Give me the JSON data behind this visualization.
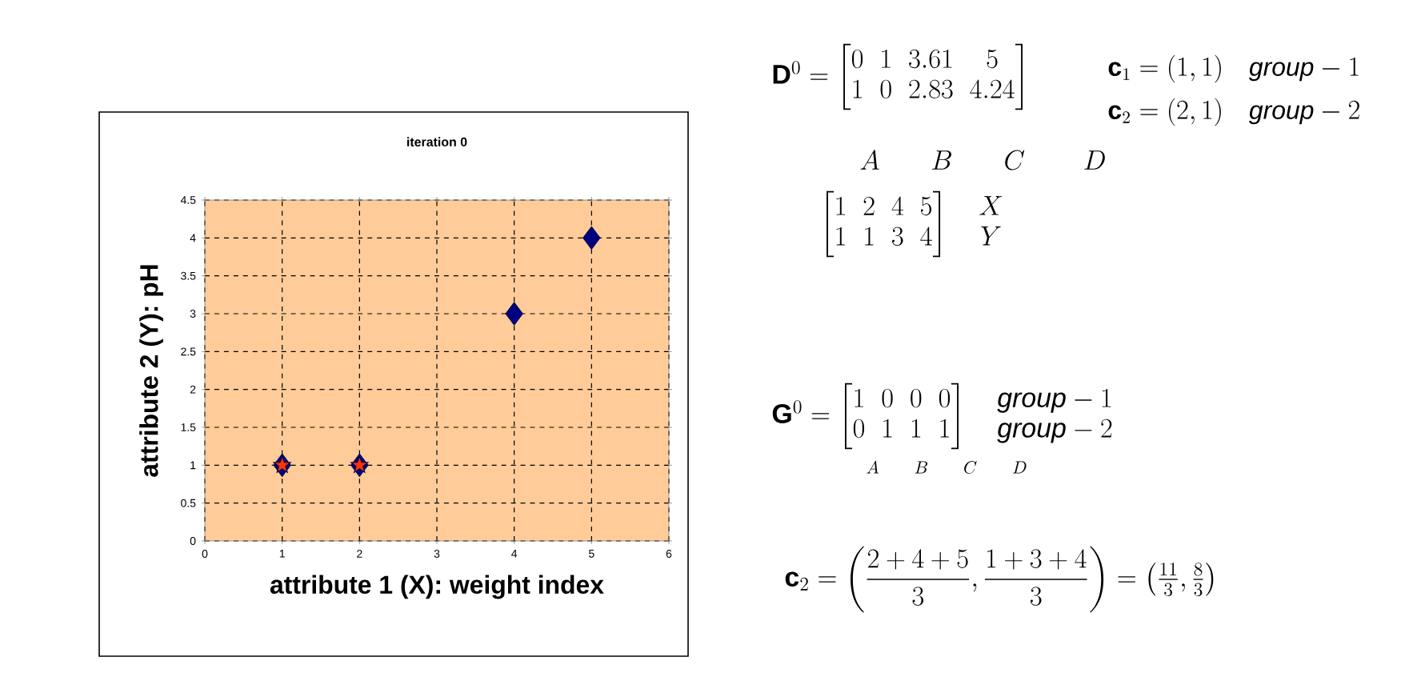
{
  "chart_data": {
    "type": "scatter",
    "title": "iteration 0",
    "xlabel": "attribute 1 (X): weight index",
    "ylabel": "attribute 2 (Y): pH",
    "xlim": [
      0,
      6
    ],
    "xticks": [
      0,
      1,
      2,
      3,
      4,
      5,
      6
    ],
    "ylim": [
      0,
      4.5
    ],
    "yticks": [
      0,
      0.5,
      1,
      1.5,
      2,
      2.5,
      3,
      3.5,
      4,
      4.5
    ],
    "grid": true,
    "series": [
      {
        "color": "#000080",
        "marker": "diamond",
        "x": [
          1,
          2,
          4,
          5
        ],
        "values": [
          1,
          1,
          3,
          4
        ]
      },
      {
        "color": "#ff3300",
        "marker": "star",
        "x": [
          1,
          2
        ],
        "values": [
          1,
          1
        ]
      }
    ],
    "annotations": [
      "\\mathbf{D}^0=\\begin{bmatrix}0&1&3.61&5\\\\1&0&2.83&4.24\\end{bmatrix}",
      "\\mathbf{c}_1=(1,1)\\quad \\mathit{group}-1",
      "\\mathbf{c}_2=(2,1)\\quad \\mathit{group}-2",
      "A\\qquad B\\qquad C\\qquad\\ D",
      "\\begin{bmatrix}1&2&4&5\\\\1&1&3&4\\end{bmatrix}\\quad\\begin{matrix}X\\\\Y\\end{matrix}",
      "\\mathbf{G}^0=\\begin{bmatrix}1&0&0&0\\\\0&1&1&1\\end{bmatrix}\\quad\\begin{matrix}\\mathit{group}-1\\\\\\mathit{group}-2\\end{matrix}",
      "A\\qquad B\\qquad C\\qquad D",
      "\\mathbf{c}_2=\\left(\\frac{2+4+5}{3},\\frac{1+3+4}{3}\\right)=\\left(\\tfrac{11}{3},\\tfrac{8}{3}\\right)"
    ]
  }
}
